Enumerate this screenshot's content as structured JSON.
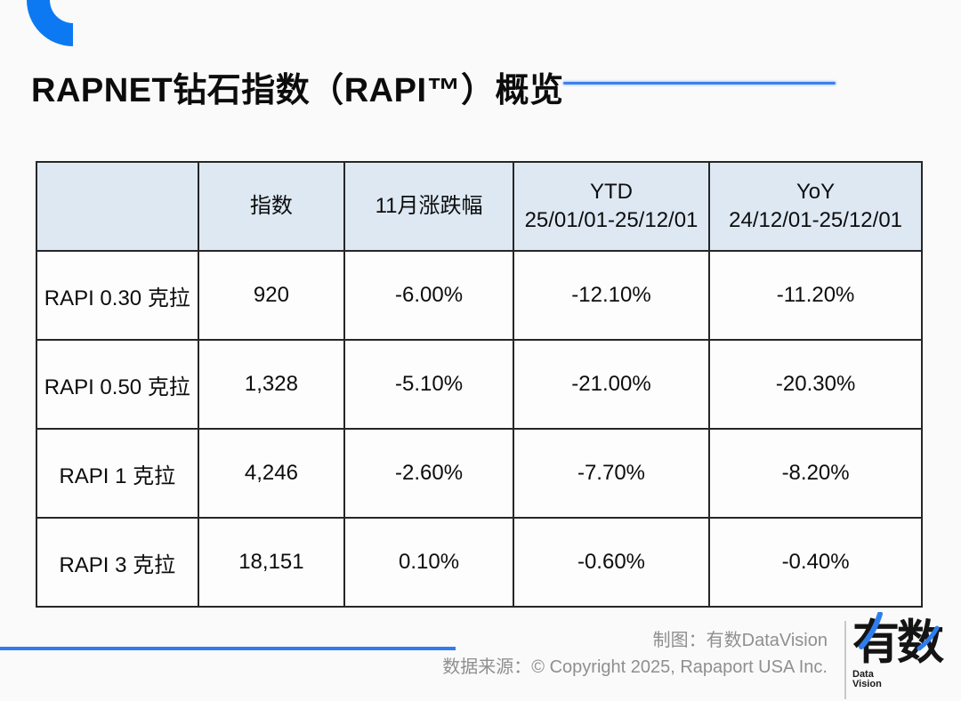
{
  "slide": {
    "title": "RAPNET钻石指数（RAPI™）概览"
  },
  "colors": {
    "accent_blue": "#0c79f2",
    "line_blue": "#3b82ec",
    "header_bg": "#dde8f3",
    "table_border": "#262626",
    "footer_text_gray": "#8f8f8f"
  },
  "table": {
    "columns": [
      {
        "label": "",
        "sublabel": ""
      },
      {
        "label": "指数",
        "sublabel": ""
      },
      {
        "label": "11月涨跌幅",
        "sublabel": ""
      },
      {
        "label": "YTD",
        "sublabel": "25/01/01-25/12/01"
      },
      {
        "label": "YoY",
        "sublabel": "24/12/01-25/12/01"
      }
    ],
    "rows": [
      {
        "name": "RAPI 0.30 克拉",
        "index": "920",
        "nov_change": "-6.00%",
        "ytd": "-12.10%",
        "yoy": "-11.20%"
      },
      {
        "name": "RAPI 0.50 克拉",
        "index": "1,328",
        "nov_change": "-5.10%",
        "ytd": "-21.00%",
        "yoy": "-20.30%"
      },
      {
        "name": "RAPI 1 克拉",
        "index": "4,246",
        "nov_change": "-2.60%",
        "ytd": "-7.70%",
        "yoy": "-8.20%"
      },
      {
        "name": "RAPI 3 克拉",
        "index": "18,151",
        "nov_change": "0.10%",
        "ytd": "-0.60%",
        "yoy": "-0.40%"
      }
    ]
  },
  "chart_data": {
    "type": "table",
    "title": "RAPNET钻石指数（RAPI™）概览",
    "columns": [
      "",
      "指数",
      "11月涨跌幅",
      "YTD 25/01/01-25/12/01",
      "YoY 24/12/01-25/12/01"
    ],
    "rows": [
      [
        "RAPI 0.30 克拉",
        920,
        "-6.00%",
        "-12.10%",
        "-11.20%"
      ],
      [
        "RAPI 0.50 克拉",
        1328,
        "-5.10%",
        "-21.00%",
        "-20.30%"
      ],
      [
        "RAPI 1 克拉",
        4246,
        "-2.60%",
        "-7.70%",
        "-8.20%"
      ],
      [
        "RAPI 3 克拉",
        18151,
        "0.10%",
        "-0.60%",
        "-0.40%"
      ]
    ]
  },
  "footer": {
    "credit": "制图：有数DataVision",
    "source": "数据来源：© Copyright 2025, Rapaport USA Inc.",
    "logo": {
      "text": "有数",
      "sub_line1": "Data",
      "sub_line2": "Vision"
    }
  }
}
